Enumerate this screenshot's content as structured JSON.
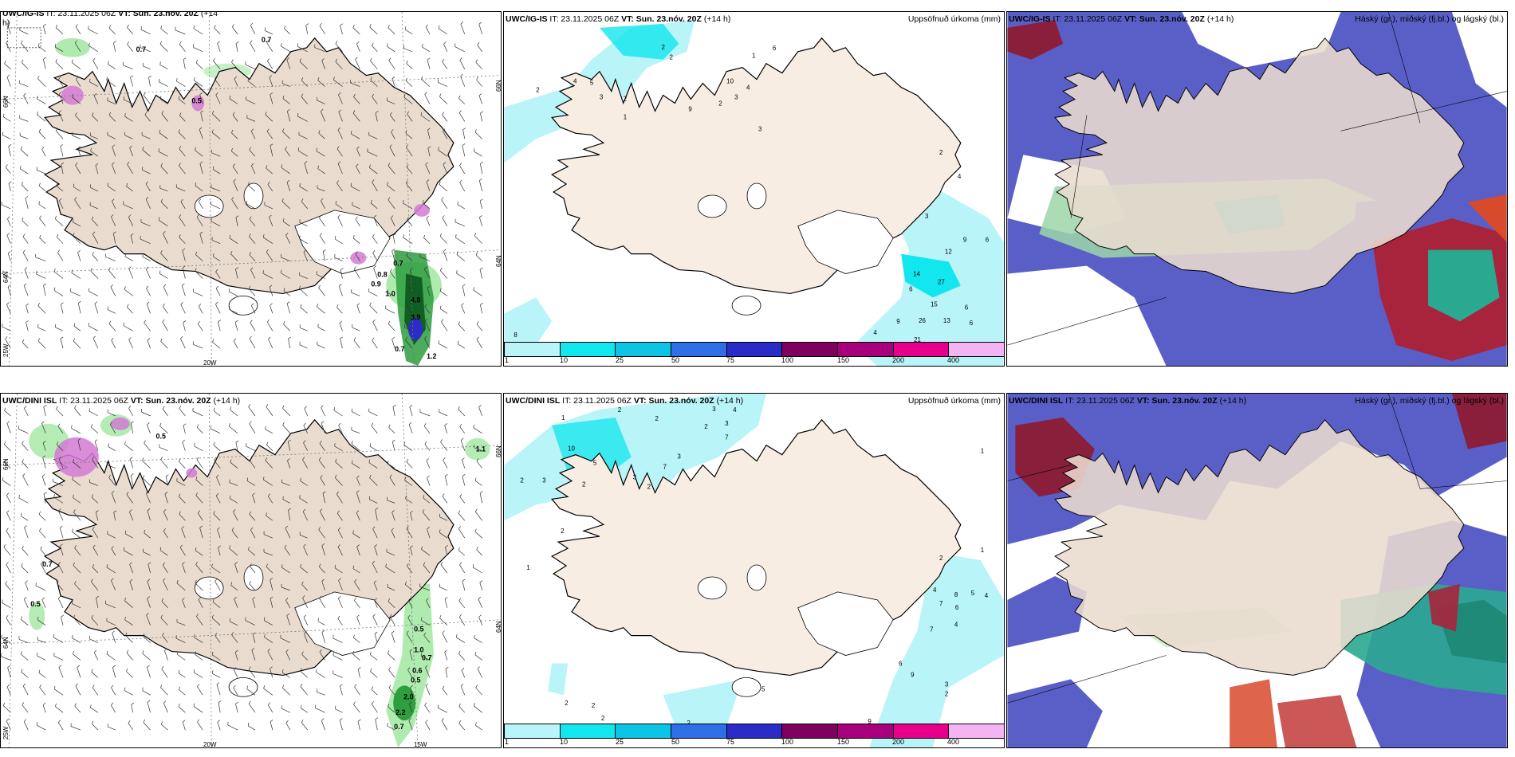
{
  "colors": {
    "land": "#f2e2d0",
    "land_top": "#e9dccf",
    "precip": [
      "#b8f4f8",
      "#12e6ee",
      "#0cc4e6",
      "#2f6fe6",
      "#2b2bc8",
      "#800060",
      "#a8007c",
      "#e8008c",
      "#f4b4f4"
    ],
    "cloud_high": "#5a5fc8",
    "cloud_mid": "#2fb8a8",
    "cloud_low": "#d84a2c"
  },
  "panels": {
    "top_left": {
      "title_model": "UWC/IG-IS",
      "title_it": "IT: 23.11.2025 06Z",
      "title_vt": "VT: Sun. 23.nóv. 20Z",
      "title_lead": "(+14",
      "title_lead2": "h)",
      "lat_top": "66N",
      "lat_mid": "64N",
      "lon_left": "25W",
      "lon_mid": "20W",
      "labels": [
        "0.7",
        "0.7",
        "0.5",
        "0.7",
        "0.8",
        "0.9",
        "1.0",
        "4.8",
        "3.9",
        "0.7",
        "1.2"
      ]
    },
    "top_mid": {
      "title_model": "UWC/IG-IS",
      "title_it": "IT: 23.11.2025 06Z",
      "title_vt": "VT: Sun. 23.nóv. 20Z",
      "title_lead": "(+14 h)",
      "right_title": "Uppsöfnuð úrkoma (mm)",
      "legend_ticks": [
        "1",
        "10",
        "25",
        "50",
        "75",
        "100",
        "150",
        "200",
        "400"
      ],
      "labels": [
        "2",
        "6",
        "2",
        "4",
        "2",
        "1",
        "3",
        "5",
        "2",
        "9",
        "3",
        "10",
        "4",
        "1",
        "2",
        "3",
        "2",
        "4",
        "9",
        "6",
        "3",
        "12",
        "14",
        "27",
        "6",
        "15",
        "6",
        "13",
        "26",
        "9",
        "6",
        "4",
        "21",
        "8"
      ]
    },
    "top_right": {
      "title_model": "UWC/IG-IS",
      "title_it": "IT: 23.11.2025 06Z",
      "title_vt": "VT: Sun. 23.nóv. 20Z",
      "title_lead": "(+14 h)",
      "right_title": "Háský (gr.), miðský (fj.bl.) og lágský (bl.)"
    },
    "bottom_left": {
      "title_model": "UWC/DINI ISL",
      "title_it": "IT: 23.11.2025 06Z",
      "title_vt": "VT: Sun. 23.nóv. 20Z",
      "title_lead": "(+14 h)",
      "lat_top": "66N",
      "lat_mid": "64N",
      "lon_left": "25W",
      "lon_mid": "20W",
      "lon_right": "15W",
      "labels": [
        "0.5",
        "1.1",
        "0.7",
        "0.5",
        "0.5",
        "1.0",
        "0.7",
        "0.6",
        "0.5",
        "2.0",
        "2.2",
        "0.7"
      ]
    },
    "bottom_mid": {
      "title_model": "UWC/DINI ISL",
      "title_it": "IT: 23.11.2025 06Z",
      "title_vt": "VT: Sun. 23.nóv. 20Z",
      "title_lead": "(+14 h)",
      "right_title": "Uppsöfnuð úrkoma (mm)",
      "legend_ticks": [
        "1",
        "10",
        "25",
        "50",
        "75",
        "100",
        "150",
        "200",
        "400"
      ],
      "labels": [
        "1",
        "2",
        "2",
        "3",
        "3",
        "4",
        "2",
        "7",
        "3",
        "10",
        "7",
        "5",
        "3",
        "2",
        "2",
        "2",
        "3",
        "1",
        "2",
        "1",
        "1",
        "2",
        "4",
        "8",
        "5",
        "4",
        "7",
        "6",
        "7",
        "4",
        "6",
        "9",
        "3",
        "2",
        "5",
        "2",
        "2",
        "2",
        "9",
        "2"
      ]
    },
    "bottom_right": {
      "title_model": "UWC/DINI ISL",
      "title_it": "IT: 23.11.2025 06Z",
      "title_vt": "VT: Sun. 23.nóv. 20Z",
      "title_lead": "(+14 h)",
      "right_title": "Háský (gr.), miðský (fj.bl.) og lágský (bl.)"
    }
  }
}
